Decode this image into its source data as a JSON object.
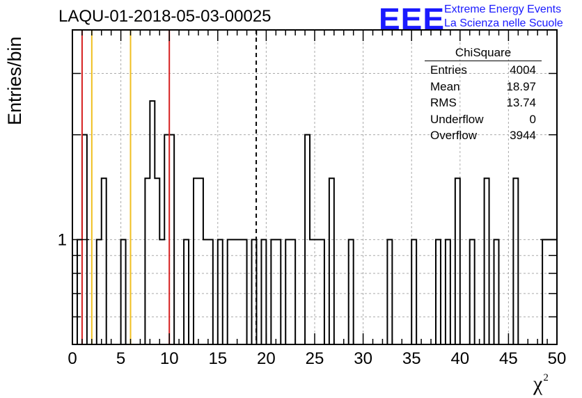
{
  "chart_data": {
    "type": "bar",
    "histogram": true,
    "title": "LAQU-01-2018-05-03-00025",
    "xlabel_base": "χ",
    "xlabel_sup": "2",
    "ylabel": "Entries/bin",
    "xlim": [
      0,
      50
    ],
    "ylog": true,
    "ylim": [
      0.5,
      4
    ],
    "bin_width": 0.5,
    "x_ticks": [
      "0",
      "5",
      "10",
      "15",
      "20",
      "25",
      "30",
      "35",
      "40",
      "45",
      "50"
    ],
    "y_tick_labels": [
      {
        "value": 1,
        "label": "1"
      }
    ],
    "grid": true,
    "bins": [
      {
        "x": 0.5,
        "y": 1
      },
      {
        "x": 1,
        "y": 2
      },
      {
        "x": 2.5,
        "y": 1
      },
      {
        "x": 3,
        "y": 1.5
      },
      {
        "x": 5,
        "y": 1
      },
      {
        "x": 7.5,
        "y": 1.5
      },
      {
        "x": 8,
        "y": 2.5
      },
      {
        "x": 8.5,
        "y": 1.5
      },
      {
        "x": 9,
        "y": 1
      },
      {
        "x": 9.5,
        "y": 2
      },
      {
        "x": 10,
        "y": 2
      },
      {
        "x": 11.5,
        "y": 1
      },
      {
        "x": 12.5,
        "y": 1.5
      },
      {
        "x": 13,
        "y": 1.5
      },
      {
        "x": 13.5,
        "y": 1
      },
      {
        "x": 14,
        "y": 1
      },
      {
        "x": 15,
        "y": 1
      },
      {
        "x": 16,
        "y": 1
      },
      {
        "x": 16.5,
        "y": 1
      },
      {
        "x": 17,
        "y": 1
      },
      {
        "x": 17.5,
        "y": 1
      },
      {
        "x": 18.5,
        "y": 1
      },
      {
        "x": 19.5,
        "y": 1
      },
      {
        "x": 20.5,
        "y": 1
      },
      {
        "x": 21,
        "y": 1
      },
      {
        "x": 22,
        "y": 1
      },
      {
        "x": 22.5,
        "y": 1
      },
      {
        "x": 24,
        "y": 2
      },
      {
        "x": 24.5,
        "y": 1
      },
      {
        "x": 25,
        "y": 1
      },
      {
        "x": 25.5,
        "y": 1
      },
      {
        "x": 26.5,
        "y": 1.5
      },
      {
        "x": 28.5,
        "y": 1
      },
      {
        "x": 32.5,
        "y": 1
      },
      {
        "x": 35,
        "y": 1
      },
      {
        "x": 37.5,
        "y": 1
      },
      {
        "x": 38.5,
        "y": 1
      },
      {
        "x": 39.5,
        "y": 1.5
      },
      {
        "x": 41,
        "y": 1
      },
      {
        "x": 42.5,
        "y": 1.5
      },
      {
        "x": 43.5,
        "y": 1
      },
      {
        "x": 45.5,
        "y": 1.5
      },
      {
        "x": 48.5,
        "y": 1
      },
      {
        "x": 49,
        "y": 1
      },
      {
        "x": 49.5,
        "y": 1
      }
    ],
    "vertical_lines": [
      {
        "x": 1,
        "color": "#d62020",
        "style": "solid"
      },
      {
        "x": 2,
        "color": "#f0c020",
        "style": "solid"
      },
      {
        "x": 6,
        "color": "#f0c020",
        "style": "solid"
      },
      {
        "x": 10,
        "color": "#d62020",
        "style": "solid"
      },
      {
        "x": 18.97,
        "color": "#000000",
        "style": "dashed"
      }
    ],
    "stats_box": {
      "title": "ChiSquare",
      "rows": [
        {
          "label": "Entries",
          "value": "4004"
        },
        {
          "label": "Mean",
          "value": "18.97"
        },
        {
          "label": "RMS",
          "value": "13.74"
        },
        {
          "label": "Underflow",
          "value": "0"
        },
        {
          "label": "Overflow",
          "value": "3944"
        }
      ]
    }
  },
  "logo": {
    "mark": "EEE",
    "line1": "Extreme Energy Events",
    "line2": "La Scienza nelle Scuole",
    "color": "#1a1aff"
  }
}
